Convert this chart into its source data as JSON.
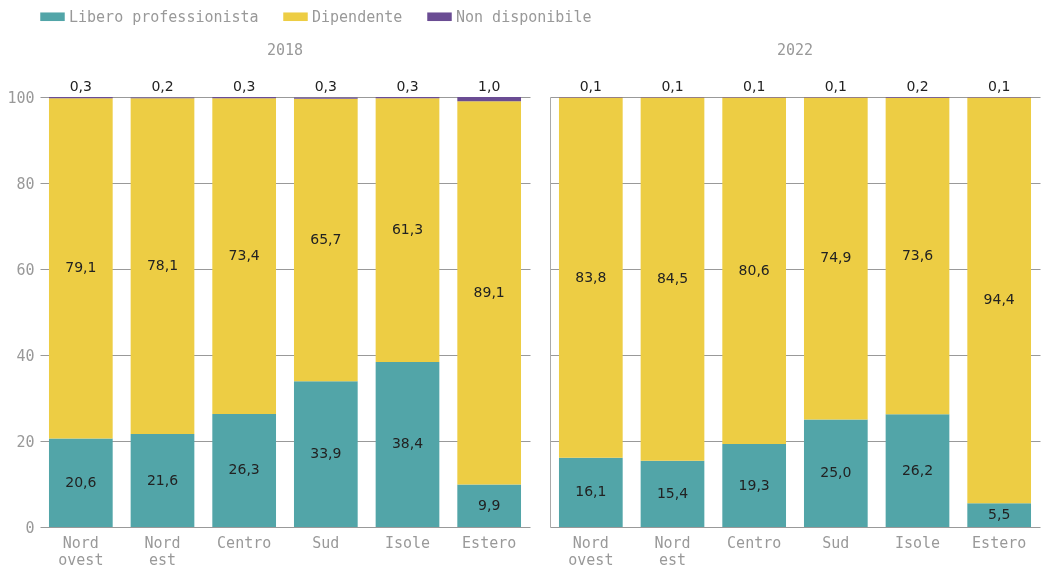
{
  "chart_data": [
    {
      "type": "bar",
      "title": "2018",
      "stacked": true,
      "categories": [
        "Nord ovest",
        "Nord est",
        "Centro",
        "Sud",
        "Isole",
        "Estero"
      ],
      "ylim": [
        0,
        100
      ],
      "yticks": [
        0,
        20,
        40,
        60,
        80,
        100
      ],
      "grid": "y",
      "legend": "top",
      "series": [
        {
          "name": "Libero professionista",
          "color": "#52a5a8",
          "values": [
            20.6,
            21.6,
            26.3,
            33.9,
            38.4,
            9.9
          ],
          "value_labels": [
            "20,6",
            "21,6",
            "26,3",
            "33,9",
            "38,4",
            "9,9"
          ]
        },
        {
          "name": "Dipendente",
          "color": "#edcd44",
          "values": [
            79.1,
            78.1,
            73.4,
            65.7,
            61.3,
            89.1
          ],
          "value_labels": [
            "79,1",
            "78,1",
            "73,4",
            "65,7",
            "61,3",
            "89,1"
          ]
        },
        {
          "name": "Non disponibile",
          "color": "#6a4c93",
          "values": [
            0.3,
            0.2,
            0.3,
            0.3,
            0.3,
            1.0
          ],
          "value_labels": [
            "0,3",
            "0,2",
            "0,3",
            "0,3",
            "0,3",
            "1,0"
          ]
        }
      ]
    },
    {
      "type": "bar",
      "title": "2022",
      "stacked": true,
      "categories": [
        "Nord ovest",
        "Nord est",
        "Centro",
        "Sud",
        "Isole",
        "Estero"
      ],
      "ylim": [
        0,
        100
      ],
      "yticks": [
        0,
        20,
        40,
        60,
        80,
        100
      ],
      "grid": "y",
      "legend": "top",
      "tick_labels": "x",
      "series": [
        {
          "name": "Libero professionista",
          "color": "#52a5a8",
          "values": [
            16.1,
            15.4,
            19.3,
            25.0,
            26.2,
            5.5
          ],
          "value_labels": [
            "16,1",
            "15,4",
            "19,3",
            "25,0",
            "26,2",
            "5,5"
          ]
        },
        {
          "name": "Dipendente",
          "color": "#edcd44",
          "values": [
            83.8,
            84.5,
            80.6,
            74.9,
            73.6,
            94.4
          ],
          "value_labels": [
            "83,8",
            "84,5",
            "80,6",
            "74,9",
            "73,6",
            "94,4"
          ]
        },
        {
          "name": "Non disponibile",
          "color": "#6a4c93",
          "values": [
            0.1,
            0.1,
            0.1,
            0.1,
            0.2,
            0.1
          ],
          "value_labels": [
            "0,1",
            "0,1",
            "0,1",
            "0,1",
            "0,2",
            "0,1"
          ]
        }
      ]
    }
  ]
}
